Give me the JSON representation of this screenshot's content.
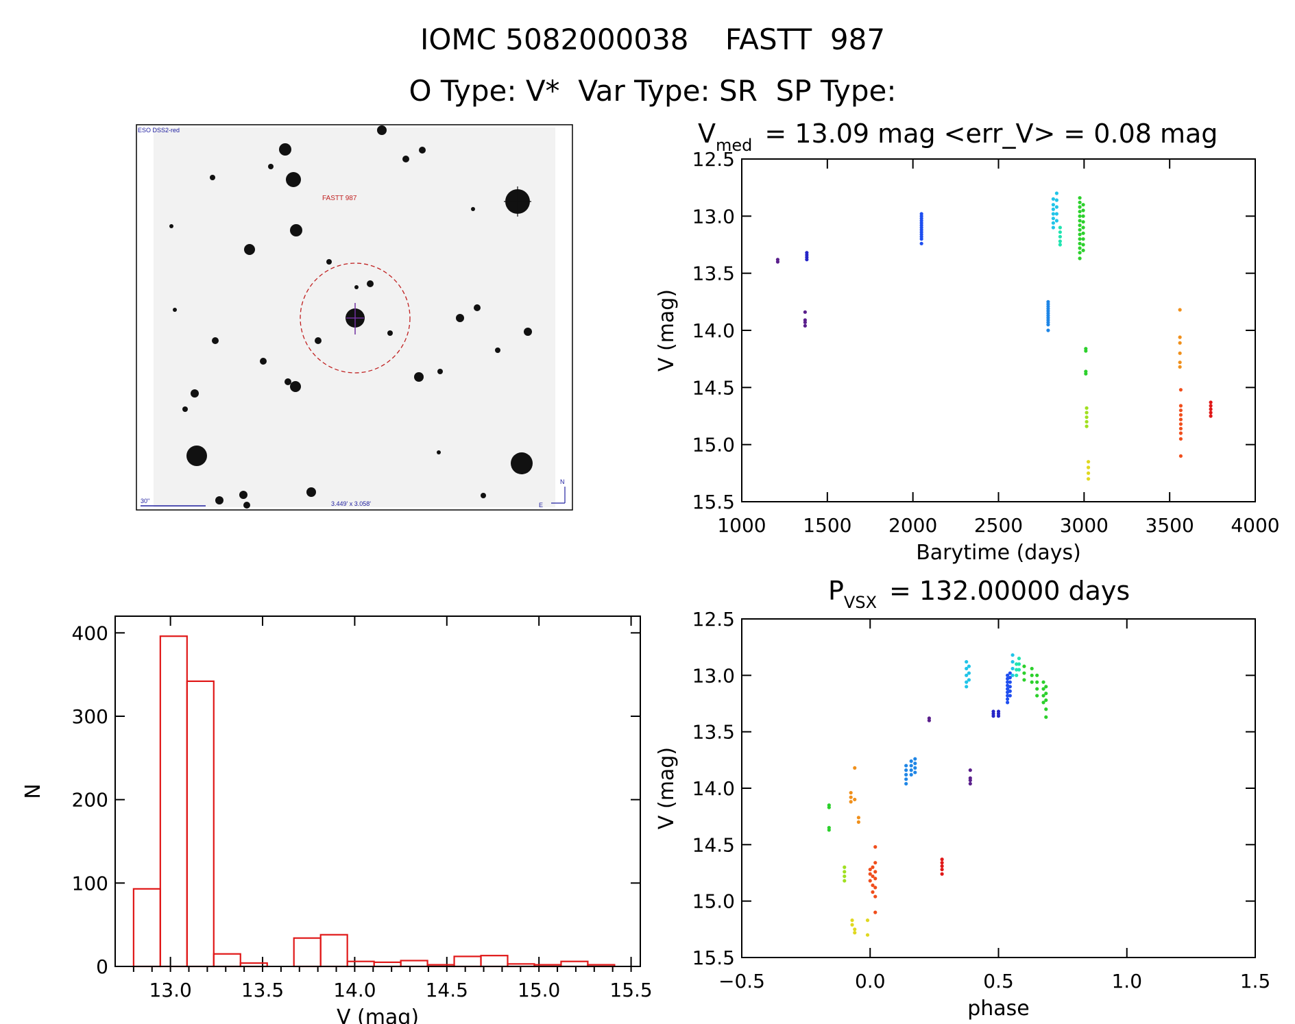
{
  "header": {
    "title": "IOMC 5082000038    FASTT  987",
    "subtitle": "O Type: V*  Var Type: SR  SP Type:"
  },
  "finder": {
    "survey_label": "ESO DSS2-red",
    "target_label": "FASTT 987",
    "scale_label": "30\"",
    "size_label": "3.449' x 3.058'",
    "north_label": "N",
    "east_label": "E"
  },
  "colors": {
    "violet": "#5a1f8c",
    "indigo": "#2626c8",
    "blue": "#1f4ff0",
    "azure": "#1f86e6",
    "cyan": "#21c4e8",
    "teal": "#20e4b0",
    "green": "#2cd02c",
    "lime": "#a0e020",
    "yellow": "#e0d820",
    "orange": "#f0901c",
    "redorange": "#f04e1c",
    "red": "#e01818",
    "hist": "#e01818"
  },
  "chart_data": [
    {
      "id": "lightcurve",
      "type": "scatter",
      "title_prefix": "V",
      "title_sub": "med",
      "title_rest": "= 13.09 mag <err_V> = 0.08 mag",
      "xlabel": "Barytime (days)",
      "ylabel": "V (mag)",
      "xlim": [
        1000,
        4000
      ],
      "ylim": [
        15.5,
        12.5
      ],
      "xticks": [
        1000,
        1500,
        2000,
        2500,
        3000,
        3500,
        4000
      ],
      "yticks": [
        12.5,
        13.0,
        13.5,
        14.0,
        14.5,
        15.0,
        15.5
      ],
      "ytick_labels": [
        "12.5",
        "13.0",
        "13.5",
        "14.0",
        "14.5",
        "15.0",
        "15.5"
      ],
      "groups": [
        {
          "color": "violet",
          "x": 1210,
          "y": [
            13.38,
            13.4
          ]
        },
        {
          "color": "violet",
          "x": 1370,
          "y": [
            13.84,
            13.91,
            13.93,
            13.96
          ]
        },
        {
          "color": "indigo",
          "x": 1380,
          "y": [
            13.32,
            13.34,
            13.36,
            13.38
          ]
        },
        {
          "color": "blue",
          "x": 2050,
          "y": [
            12.98,
            13.0,
            13.02,
            13.04,
            13.06,
            13.08,
            13.1,
            13.12,
            13.14,
            13.16,
            13.18,
            13.2,
            13.24
          ]
        },
        {
          "color": "azure",
          "x": 2790,
          "y": [
            13.75,
            13.77,
            13.79,
            13.81,
            13.83,
            13.85,
            13.87,
            13.89,
            13.91,
            13.93,
            13.95,
            14.0
          ]
        },
        {
          "color": "cyan",
          "x": 2820,
          "y": [
            12.85,
            12.9,
            12.94,
            12.98,
            13.02,
            13.06,
            13.1
          ]
        },
        {
          "color": "cyan",
          "x": 2840,
          "y": [
            12.8,
            12.86,
            12.92,
            12.98,
            13.04
          ]
        },
        {
          "color": "teal",
          "x": 2860,
          "y": [
            13.1,
            13.14,
            13.18,
            13.22,
            13.25
          ]
        },
        {
          "color": "green",
          "x": 2975,
          "y": [
            12.84,
            12.88,
            12.92,
            12.96,
            13.0,
            13.04,
            13.08,
            13.12,
            13.16,
            13.2,
            13.24,
            13.28,
            13.32,
            13.37
          ]
        },
        {
          "color": "green",
          "x": 2995,
          "y": [
            12.9,
            12.95,
            13.0,
            13.05,
            13.1,
            13.15,
            13.2,
            13.25,
            13.3
          ]
        },
        {
          "color": "green",
          "x": 3010,
          "y": [
            14.16,
            14.18,
            14.36,
            14.38
          ]
        },
        {
          "color": "lime",
          "x": 3015,
          "y": [
            14.68,
            14.72,
            14.76,
            14.8,
            14.84
          ]
        },
        {
          "color": "yellow",
          "x": 3025,
          "y": [
            15.15,
            15.2,
            15.25,
            15.3
          ]
        },
        {
          "color": "orange",
          "x": 3560,
          "y": [
            13.82,
            14.06,
            14.11,
            14.2,
            14.28,
            14.32
          ]
        },
        {
          "color": "redorange",
          "x": 3565,
          "y": [
            14.52,
            14.66,
            14.7,
            14.74,
            14.78,
            14.82,
            14.86,
            14.9,
            14.95,
            15.1
          ]
        },
        {
          "color": "red",
          "x": 3740,
          "y": [
            14.63,
            14.66,
            14.69,
            14.72,
            14.75
          ]
        }
      ]
    },
    {
      "id": "histogram",
      "type": "bar",
      "xlabel": "V (mag)",
      "ylabel": "N",
      "xlim": [
        12.7,
        15.55
      ],
      "ylim": [
        0,
        420
      ],
      "xticks": [
        13.0,
        13.5,
        14.0,
        14.5,
        15.0,
        15.5
      ],
      "xtick_labels": [
        "13.0",
        "13.5",
        "14.0",
        "14.5",
        "15.0",
        "15.5"
      ],
      "yticks": [
        0,
        100,
        200,
        300,
        400
      ],
      "bin_start": 12.8,
      "bin_width": 0.145,
      "values": [
        93,
        396,
        342,
        15,
        4,
        0,
        34,
        38,
        6,
        5,
        7,
        2,
        12,
        13,
        3,
        2,
        6,
        2
      ]
    },
    {
      "id": "phased",
      "type": "scatter",
      "title_prefix": "P",
      "title_sub": "VSX",
      "title_rest": "= 132.00000 days",
      "xlabel": "phase",
      "ylabel": "V (mag)",
      "xlim": [
        -0.5,
        1.5
      ],
      "ylim": [
        15.5,
        12.5
      ],
      "xticks": [
        -0.5,
        0.0,
        0.5,
        1.0,
        1.5
      ],
      "xtick_labels": [
        "−0.5",
        "0.0",
        "0.5",
        "1.0",
        "1.5"
      ],
      "yticks": [
        12.5,
        13.0,
        13.5,
        14.0,
        14.5,
        15.0,
        15.5
      ],
      "ytick_labels": [
        "12.5",
        "13.0",
        "13.5",
        "14.0",
        "14.5",
        "15.0",
        "15.5"
      ],
      "groups": [
        {
          "color": "violet",
          "x": 0.23,
          "y": [
            13.38,
            13.4
          ]
        },
        {
          "color": "violet",
          "x": 0.39,
          "y": [
            13.84,
            13.91,
            13.93,
            13.96
          ]
        },
        {
          "color": "indigo",
          "x": 0.48,
          "y": [
            13.32,
            13.34,
            13.36
          ]
        },
        {
          "color": "indigo",
          "x": 0.5,
          "y": [
            13.32,
            13.34,
            13.36
          ]
        },
        {
          "color": "blue",
          "x": 0.535,
          "y": [
            13.0,
            13.03,
            13.06,
            13.09,
            13.12,
            13.15,
            13.18,
            13.21,
            13.24
          ]
        },
        {
          "color": "blue",
          "x": 0.545,
          "y": [
            12.98,
            13.02,
            13.06,
            13.1,
            13.14,
            13.18
          ]
        },
        {
          "color": "azure",
          "x": 0.14,
          "y": [
            13.8,
            13.84,
            13.88,
            13.92,
            13.96
          ]
        },
        {
          "color": "azure",
          "x": 0.16,
          "y": [
            13.76,
            13.8,
            13.84,
            13.88
          ]
        },
        {
          "color": "azure",
          "x": 0.175,
          "y": [
            13.74,
            13.78,
            13.82,
            13.86
          ]
        },
        {
          "color": "cyan",
          "x": 0.375,
          "y": [
            12.88,
            12.94,
            13.0,
            13.06,
            13.1
          ]
        },
        {
          "color": "cyan",
          "x": 0.385,
          "y": [
            12.92,
            12.98,
            13.04
          ]
        },
        {
          "color": "cyan",
          "x": 0.555,
          "y": [
            12.82,
            12.88,
            12.94,
            13.0
          ]
        },
        {
          "color": "teal",
          "x": 0.57,
          "y": [
            12.9,
            12.95,
            13.0
          ]
        },
        {
          "color": "teal",
          "x": 0.58,
          "y": [
            12.85,
            12.9,
            12.95
          ]
        },
        {
          "color": "green",
          "x": 0.6,
          "y": [
            12.92,
            12.98,
            13.04
          ]
        },
        {
          "color": "green",
          "x": 0.63,
          "y": [
            12.94,
            13.0,
            13.06
          ]
        },
        {
          "color": "green",
          "x": 0.65,
          "y": [
            13.0,
            13.06,
            13.12,
            13.18
          ]
        },
        {
          "color": "green",
          "x": 0.675,
          "y": [
            13.06,
            13.12,
            13.18,
            13.24
          ]
        },
        {
          "color": "green",
          "x": 0.685,
          "y": [
            13.1,
            13.16,
            13.22,
            13.3,
            13.37
          ]
        },
        {
          "color": "green",
          "x": -0.16,
          "y": [
            14.15,
            14.17,
            14.35,
            14.37
          ]
        },
        {
          "color": "lime",
          "x": -0.1,
          "y": [
            14.7,
            14.74,
            14.78,
            14.82
          ]
        },
        {
          "color": "yellow",
          "x": -0.07,
          "y": [
            15.17,
            15.21
          ]
        },
        {
          "color": "yellow",
          "x": -0.06,
          "y": [
            15.25,
            15.28
          ]
        },
        {
          "color": "yellow",
          "x": -0.01,
          "y": [
            15.17,
            15.3
          ]
        },
        {
          "color": "orange",
          "x": -0.075,
          "y": [
            14.04,
            14.08,
            14.12
          ]
        },
        {
          "color": "orange",
          "x": -0.06,
          "y": [
            13.82,
            14.1
          ]
        },
        {
          "color": "orange",
          "x": -0.045,
          "y": [
            14.26,
            14.3
          ]
        },
        {
          "color": "redorange",
          "x": 0.0,
          "y": [
            14.72,
            14.76,
            14.82
          ]
        },
        {
          "color": "redorange",
          "x": 0.01,
          "y": [
            14.7,
            14.78,
            14.86,
            14.92
          ]
        },
        {
          "color": "redorange",
          "x": 0.02,
          "y": [
            14.52,
            14.66,
            14.74,
            14.8,
            14.88,
            14.96,
            15.1
          ]
        },
        {
          "color": "red",
          "x": 0.28,
          "y": [
            14.63,
            14.66,
            14.69,
            14.72,
            14.76
          ]
        }
      ]
    }
  ]
}
